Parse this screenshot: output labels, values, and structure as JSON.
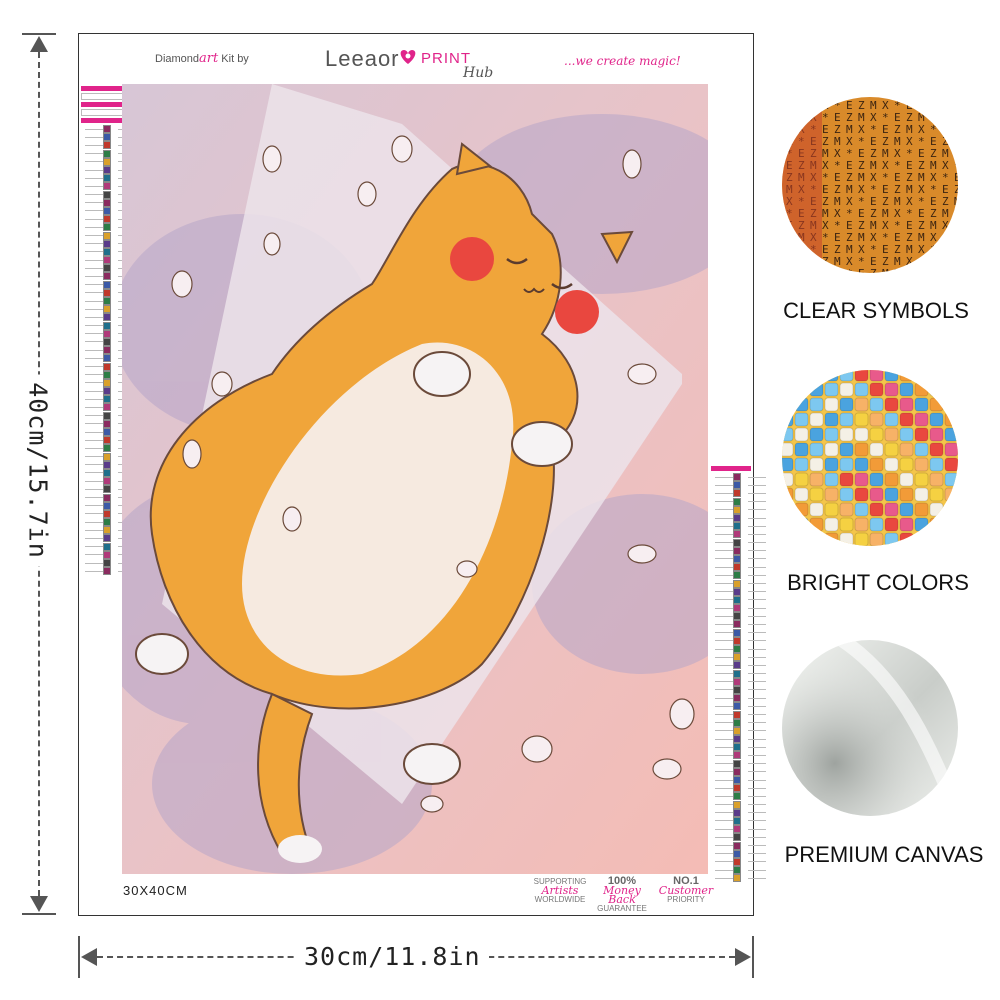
{
  "dimensions": {
    "height_label": "40cm/15.7in",
    "width_label": "30cm/11.8in"
  },
  "kit": {
    "header_left_prefix": "Diamond",
    "header_left_accent": "art",
    "header_left_suffix": "Kit by",
    "brand_name": "Leeaor",
    "brand_print": "PRINT",
    "brand_hub": "Hub",
    "tagline": "...we create magic!",
    "size_label": "30X40CM",
    "badges": [
      {
        "top": "SUPPORTING",
        "script": "Artists",
        "bottom": "WORLDWIDE"
      },
      {
        "top": "100%",
        "script": "Money Back",
        "bottom": "GUARANTEE"
      },
      {
        "top": "NO.1",
        "script": "Customer",
        "bottom": "PRIORITY"
      }
    ]
  },
  "features": [
    {
      "label": "CLEAR SYMBOLS",
      "icon": "symbols-closeup-icon"
    },
    {
      "label": "BRIGHT COLORS",
      "icon": "colored-drills-icon"
    },
    {
      "label": "PREMIUM CANVAS",
      "icon": "canvas-fold-icon"
    }
  ],
  "colors": {
    "accent": "#e0248a",
    "cat_orange": "#f0a53a",
    "background_pink": "#f3bcb8",
    "shadow_lavender": "#b9a5c8"
  }
}
